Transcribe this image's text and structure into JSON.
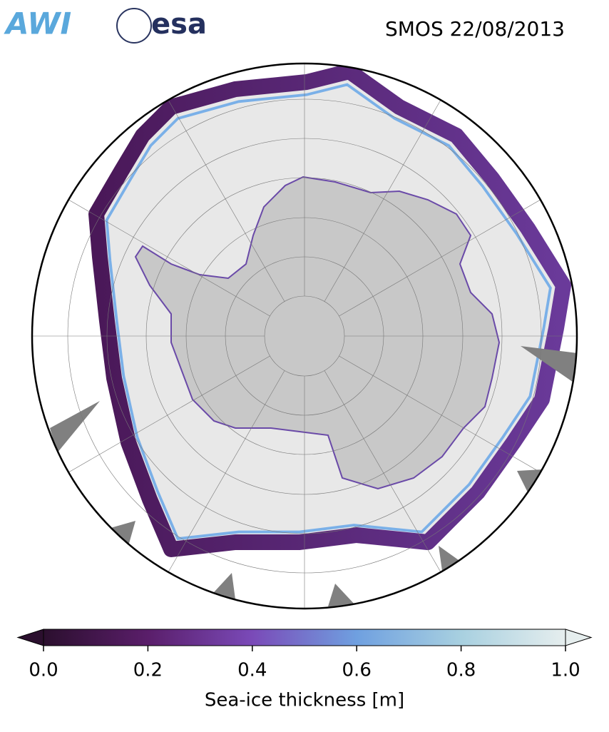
{
  "header": {
    "logos": [
      "AWI",
      "esa"
    ],
    "title": "SMOS 22/08/2013"
  },
  "colorbar": {
    "label": "Sea-ice thickness [m]",
    "range": [
      0,
      1
    ],
    "ticks": [
      {
        "value": 0,
        "label": "0.0"
      },
      0.2,
      0.4,
      0.6,
      0.8,
      {
        "value": 1,
        "label": "1.0"
      }
    ],
    "colors": [
      "#2b0f2e",
      "#5a1e6a",
      "#7a4ab8",
      "#6fa0e0",
      "#a8d0e0",
      "#e6eeee"
    ]
  }
}
